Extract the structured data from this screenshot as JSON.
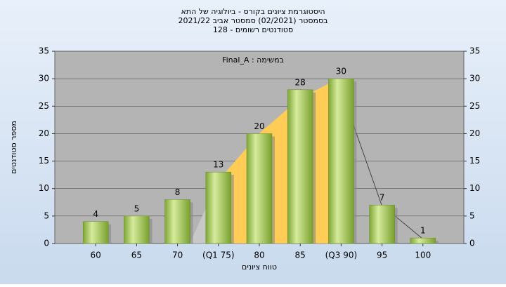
{
  "chart_data": {
    "type": "bar",
    "title": [
      "היסטוגרמת ציונים בקורס - ביולוגיה של התא",
      "בסמסטר  (02/2021)  סמסטר אביב 2021/22",
      "סטודנטים רשומים - 128"
    ],
    "annotation": "במשימה : Final_A",
    "x_label": "טווח ציונים",
    "y_label": "מספר סטודנטים",
    "categories": [
      "60",
      "65",
      "70",
      "(Q1 75)",
      "80",
      "85",
      "(Q3 90)",
      "95",
      "100"
    ],
    "values": [
      4,
      5,
      8,
      13,
      20,
      28,
      30,
      7,
      1
    ],
    "color": "#9cc84a",
    "ylim": [
      0,
      35
    ],
    "yticks": [
      0,
      5,
      10,
      15,
      20,
      25,
      30,
      35
    ],
    "grid": true
  }
}
